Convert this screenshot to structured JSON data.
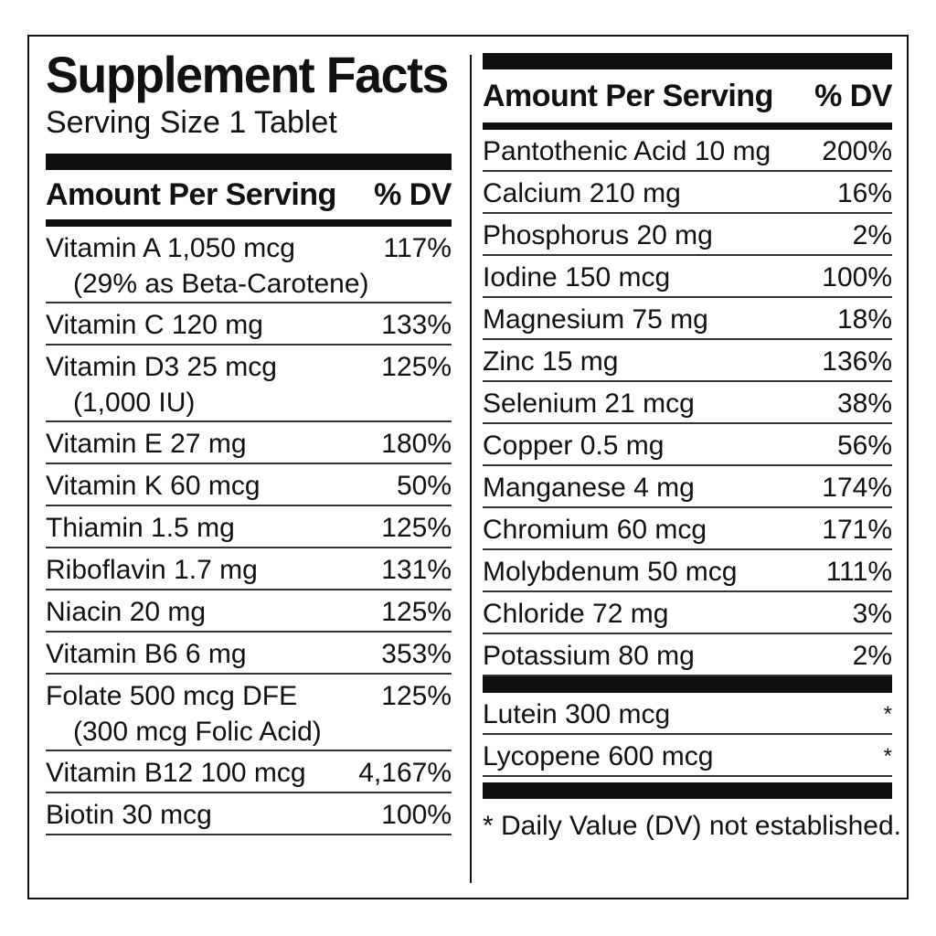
{
  "title": "Supplement Facts",
  "serving_size": "Serving Size 1 Tablet",
  "header": {
    "amount": "Amount Per Serving",
    "dv": "% DV"
  },
  "left_rows": [
    {
      "name": "Vitamin A 1,050 mcg",
      "sub": "(29% as Beta-Carotene)",
      "dv": "117%"
    },
    {
      "name": "Vitamin C 120 mg",
      "dv": "133%"
    },
    {
      "name": "Vitamin D3 25 mcg",
      "sub": "(1,000 IU)",
      "dv": "125%"
    },
    {
      "name": "Vitamin E  27 mg",
      "dv": "180%"
    },
    {
      "name": "Vitamin K 60 mcg",
      "dv": "50%"
    },
    {
      "name": "Thiamin 1.5 mg",
      "dv": "125%"
    },
    {
      "name": "Riboflavin 1.7 mg",
      "dv": "131%"
    },
    {
      "name": "Niacin 20 mg",
      "dv": "125%"
    },
    {
      "name": "Vitamin B6 6 mg",
      "dv": "353%"
    },
    {
      "name": "Folate 500 mcg DFE",
      "sub": "(300 mcg Folic Acid)",
      "dv": "125%"
    },
    {
      "name": "Vitamin B12 100 mcg",
      "dv": "4,167%"
    },
    {
      "name": "Biotin 30 mcg",
      "dv": "100%"
    }
  ],
  "right_rows": [
    {
      "name": "Pantothenic Acid 10 mg",
      "dv": "200%"
    },
    {
      "name": "Calcium 210 mg",
      "dv": "16%"
    },
    {
      "name": "Phosphorus 20 mg",
      "dv": "2%"
    },
    {
      "name": "Iodine 150 mcg",
      "dv": "100%"
    },
    {
      "name": "Magnesium 75 mg",
      "dv": "18%"
    },
    {
      "name": "Zinc 15 mg",
      "dv": "136%"
    },
    {
      "name": "Selenium 21 mcg",
      "dv": "38%"
    },
    {
      "name": "Copper 0.5 mg",
      "dv": "56%"
    },
    {
      "name": "Manganese 4 mg",
      "dv": "174%"
    },
    {
      "name": "Chromium 60 mcg",
      "dv": "171%"
    },
    {
      "name": "Molybdenum 50 mcg",
      "dv": "111%"
    },
    {
      "name": "Chloride 72 mg",
      "dv": "3%"
    },
    {
      "name": "Potassium 80 mg",
      "dv": "2%"
    }
  ],
  "other_rows": [
    {
      "name": "Lutein 300 mcg",
      "dv": "*"
    },
    {
      "name": "Lycopene 600 mcg",
      "dv": "*"
    }
  ],
  "footnote": "* Daily Value (DV) not established."
}
